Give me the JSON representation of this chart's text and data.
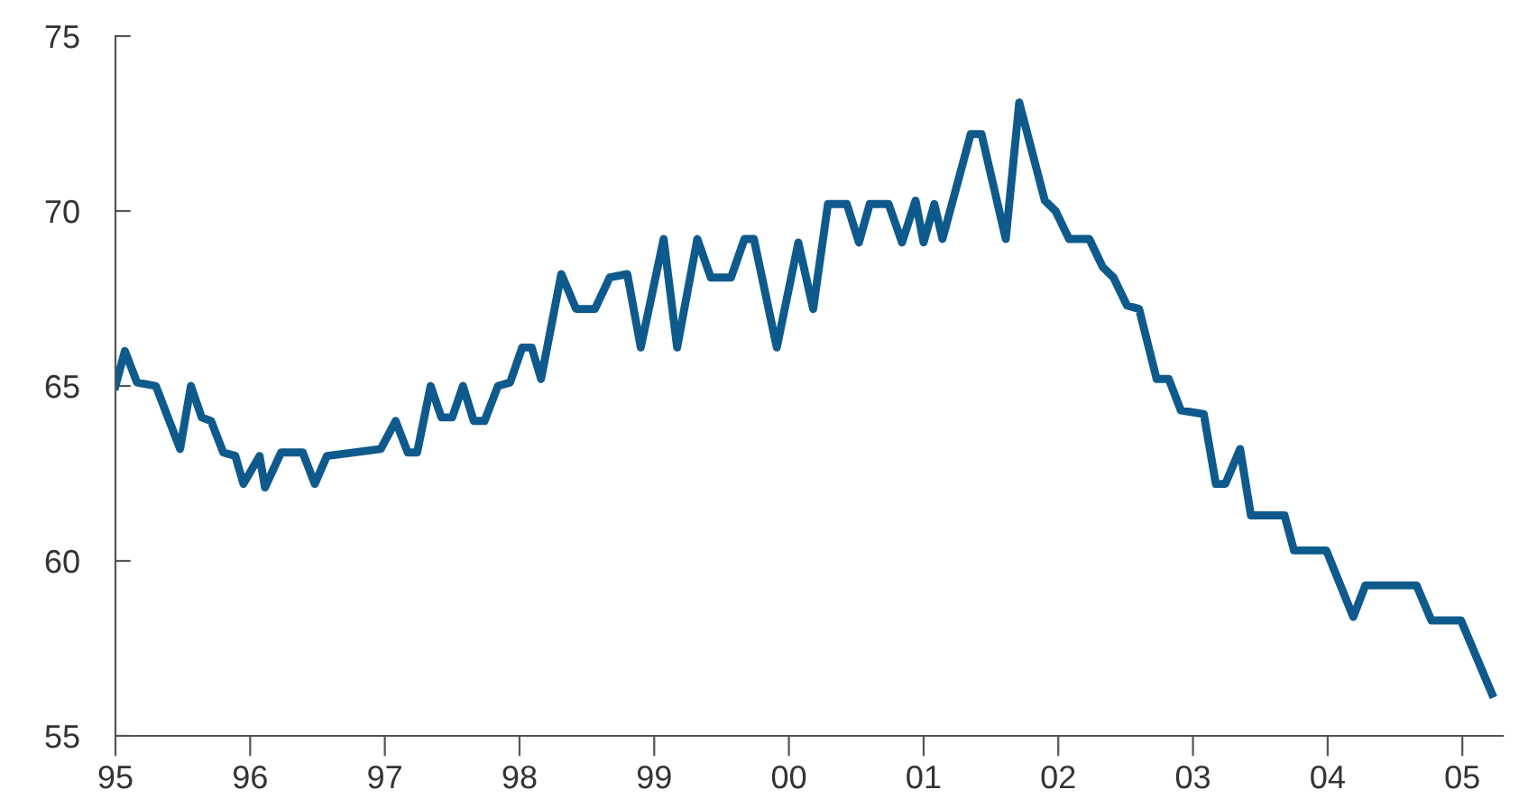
{
  "chart_data": {
    "type": "line",
    "x": [
      1995.0,
      1995.07,
      1995.16,
      1995.3,
      1995.48,
      1995.56,
      1995.64,
      1995.71,
      1995.8,
      1995.89,
      1995.95,
      1996.07,
      1996.11,
      1996.23,
      1996.39,
      1996.48,
      1996.57,
      1996.97,
      1997.08,
      1997.17,
      1997.24,
      1997.34,
      1997.42,
      1997.5,
      1997.58,
      1997.66,
      1997.74,
      1997.84,
      1997.93,
      1998.02,
      1998.09,
      1998.16,
      1998.31,
      1998.42,
      1998.56,
      1998.67,
      1998.8,
      1998.9,
      1999.07,
      1999.17,
      1999.32,
      1999.42,
      1999.57,
      1999.67,
      1999.74,
      1999.91,
      2000.07,
      2000.18,
      2000.29,
      2000.43,
      2000.52,
      2000.6,
      2000.74,
      2000.84,
      2000.94,
      2001.0,
      2001.08,
      2001.14,
      2001.35,
      2001.43,
      2001.61,
      2001.71,
      2001.9,
      2001.98,
      2002.08,
      2002.23,
      2002.33,
      2002.41,
      2002.51,
      2002.6,
      2002.73,
      2002.82,
      2002.91,
      2003.08,
      2003.17,
      2003.24,
      2003.35,
      2003.43,
      2003.68,
      2003.75,
      2003.99,
      2004.19,
      2004.28,
      2004.66,
      2004.77,
      2004.99,
      2005.22
    ],
    "series": [
      {
        "color": "#0f5a8c",
        "values": [
          65.0,
          66.0,
          65.1,
          65.0,
          63.2,
          65.0,
          64.1,
          64.0,
          63.1,
          63.0,
          62.2,
          63.0,
          62.1,
          63.1,
          63.1,
          62.2,
          63.0,
          63.2,
          64.0,
          63.1,
          63.1,
          65.0,
          64.1,
          64.1,
          65.0,
          64.0,
          64.0,
          65.0,
          65.1,
          66.1,
          66.1,
          65.2,
          68.2,
          67.2,
          67.2,
          68.1,
          68.2,
          66.1,
          69.2,
          66.1,
          69.2,
          68.1,
          68.1,
          69.2,
          69.2,
          66.1,
          69.1,
          67.2,
          70.2,
          70.2,
          69.1,
          70.2,
          70.2,
          69.1,
          70.3,
          69.1,
          70.2,
          69.2,
          72.2,
          72.2,
          69.2,
          73.1,
          70.3,
          70.0,
          69.2,
          69.2,
          68.4,
          68.1,
          67.3,
          67.2,
          65.2,
          65.2,
          64.3,
          64.2,
          62.2,
          62.2,
          63.2,
          61.3,
          61.3,
          60.3,
          60.3,
          58.4,
          59.3,
          59.3,
          58.3,
          58.3,
          56.2
        ]
      }
    ],
    "xlim": [
      1995.0,
      2005.3
    ],
    "ylim": [
      55,
      75
    ],
    "xticks": [
      {
        "value": 1995,
        "label": "95"
      },
      {
        "value": 1996,
        "label": "96"
      },
      {
        "value": 1997,
        "label": "97"
      },
      {
        "value": 1998,
        "label": "98"
      },
      {
        "value": 1999,
        "label": "99"
      },
      {
        "value": 2000,
        "label": "00"
      },
      {
        "value": 2001,
        "label": "01"
      },
      {
        "value": 2002,
        "label": "02"
      },
      {
        "value": 2003,
        "label": "03"
      },
      {
        "value": 2004,
        "label": "04"
      },
      {
        "value": 2005,
        "label": "05"
      }
    ],
    "yticks": [
      55,
      60,
      65,
      70,
      75
    ],
    "grid": false,
    "marker": "none",
    "line_style": "solid"
  }
}
